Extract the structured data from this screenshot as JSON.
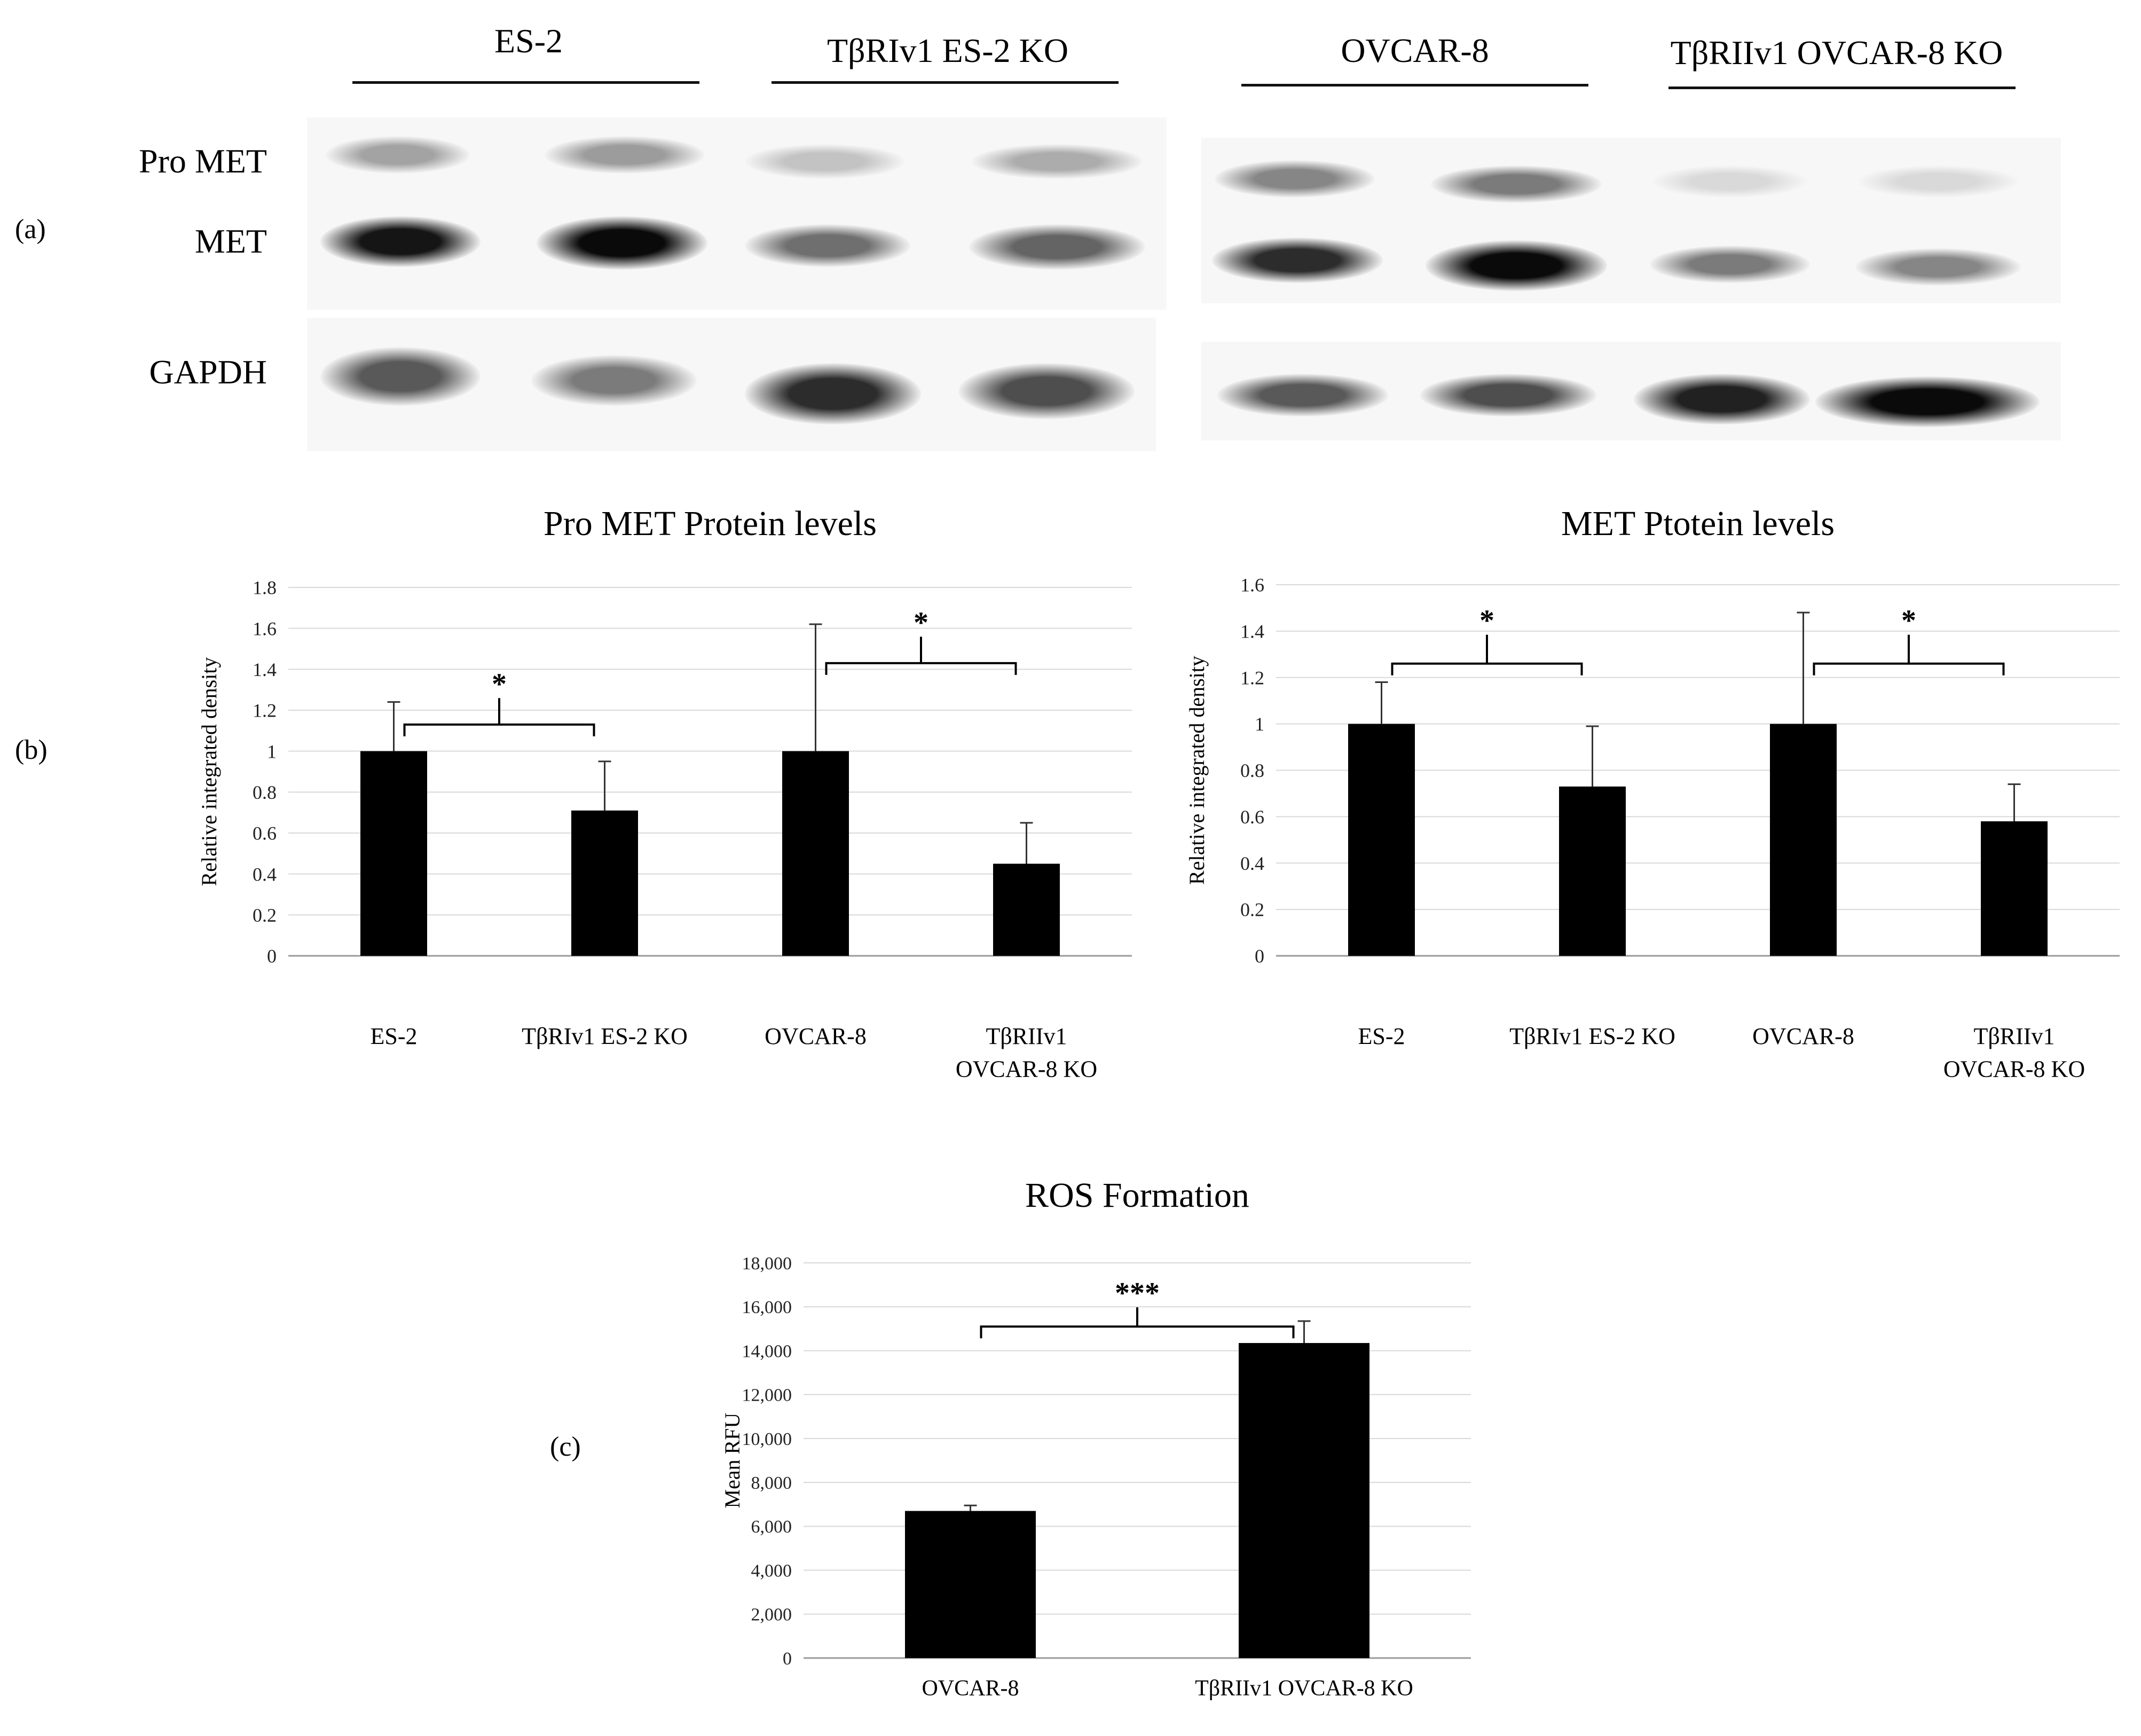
{
  "panel_labels": [
    "(a)",
    "(b)",
    "(c)"
  ],
  "western_blot": {
    "lane_groups": [
      "ES-2",
      "TβRIv1 ES-2 KO",
      "OVCAR-8",
      "TβRIIv1 OVCAR-8 KO"
    ],
    "row_labels": [
      "Pro MET",
      "MET",
      "GAPDH"
    ],
    "band_intensity": {
      "pro_met": [
        0.32,
        0.35,
        0.18,
        0.28,
        0.45,
        0.5,
        0.08,
        0.08
      ],
      "met": [
        0.95,
        1.0,
        0.55,
        0.6,
        0.85,
        1.0,
        0.5,
        0.45
      ],
      "gapdh": [
        0.65,
        0.5,
        0.85,
        0.7,
        0.65,
        0.7,
        0.9,
        1.0
      ]
    }
  },
  "chart_data": [
    {
      "type": "bar",
      "title": "Pro MET Protein levels",
      "ylabel": "Relative integrated density",
      "xlabel": "",
      "categories": [
        [
          "ES-2"
        ],
        [
          "TβRIv1 ES-2 KO"
        ],
        [
          "OVCAR-8"
        ],
        [
          "TβRIIv1",
          "OVCAR-8 KO"
        ]
      ],
      "values": [
        1.0,
        0.71,
        1.0,
        0.45
      ],
      "error_plus": [
        0.24,
        0.24,
        0.62,
        0.2
      ],
      "ylim": [
        0,
        1.8
      ],
      "yticks": [
        "0",
        "0.2",
        "0.4",
        "0.6",
        "0.8",
        "1",
        "1.2",
        "1.4",
        "1.6",
        "1.8"
      ],
      "grid": true,
      "color": "#000000",
      "significance": [
        {
          "from": 0,
          "to": 1,
          "label": "*"
        },
        {
          "from": 2,
          "to": 3,
          "label": "*"
        }
      ]
    },
    {
      "type": "bar",
      "title": "MET Ptotein levels",
      "ylabel": "Relative integrated density",
      "xlabel": "",
      "categories": [
        [
          "ES-2"
        ],
        [
          "TβRIv1 ES-2 KO"
        ],
        [
          "OVCAR-8"
        ],
        [
          "TβRIIv1",
          "OVCAR-8 KO"
        ]
      ],
      "values": [
        1.0,
        0.73,
        1.0,
        0.58
      ],
      "error_plus": [
        0.18,
        0.26,
        0.48,
        0.16
      ],
      "ylim": [
        0,
        1.6
      ],
      "yticks": [
        "0",
        "0.2",
        "0.4",
        "0.6",
        "0.8",
        "1",
        "1.2",
        "1.4",
        "1.6"
      ],
      "grid": true,
      "color": "#000000",
      "significance": [
        {
          "from": 0,
          "to": 1,
          "label": "*"
        },
        {
          "from": 2,
          "to": 3,
          "label": "*"
        }
      ]
    },
    {
      "type": "bar",
      "title": "ROS Formation",
      "ylabel": "Mean RFU",
      "xlabel": "",
      "categories": [
        [
          "OVCAR-8"
        ],
        [
          "TβRIIv1 OVCAR-8 KO"
        ]
      ],
      "values": [
        6700,
        14350
      ],
      "error_plus": [
        250,
        1000
      ],
      "ylim": [
        0,
        18000
      ],
      "yticks": [
        "0",
        "2,000",
        "4,000",
        "6,000",
        "8,000",
        "10,000",
        "12,000",
        "14,000",
        "16,000",
        "18,000"
      ],
      "grid": true,
      "color": "#000000",
      "significance": [
        {
          "from": 0,
          "to": 1,
          "label": "***"
        }
      ]
    }
  ]
}
